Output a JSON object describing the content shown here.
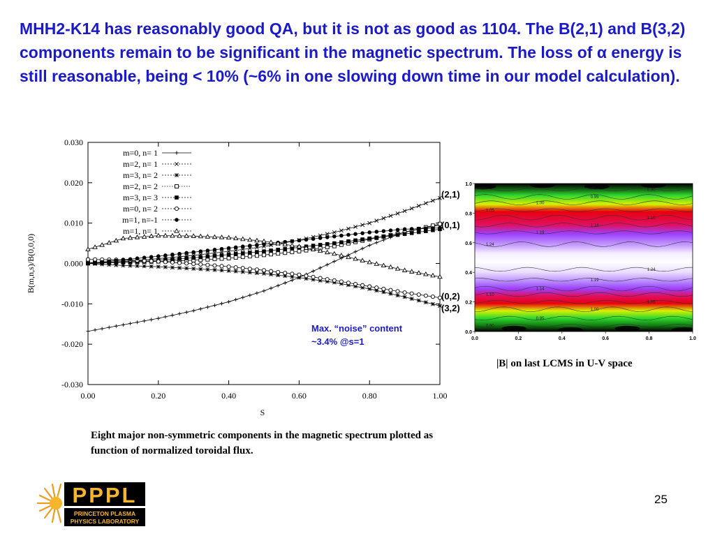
{
  "title": "MHH2-K14 has reasonably good QA, but it is not as good as 1104. The B(2,1) and B(3,2) components remain to be significant in the magnetic spectrum. The loss of α energy is still reasonable, being < 10% (~6% in one slowing down time in our model calculation).",
  "chart_data": [
    {
      "type": "line",
      "xlabel": "S",
      "ylabel": "B(m,n,s)/B(0,0,0)",
      "xlim": [
        0.0,
        1.0
      ],
      "ylim": [
        -0.03,
        0.03
      ],
      "x_ticks": [
        "0.00",
        "0.20",
        "0.40",
        "0.60",
        "0.80",
        "1.00"
      ],
      "y_ticks": [
        "-0.030",
        "-0.020",
        "-0.010",
        "0.000",
        "0.010",
        "0.020",
        "0.030"
      ],
      "legend_position": "top-left",
      "grid": false,
      "x": [
        0.0,
        0.1,
        0.2,
        0.3,
        0.4,
        0.5,
        0.6,
        0.7,
        0.8,
        0.9,
        1.0
      ],
      "series": [
        {
          "name": "m=0, n= 1",
          "marker": "plus",
          "values": [
            -0.0168,
            -0.0152,
            -0.0136,
            -0.0117,
            -0.0095,
            -0.0068,
            -0.0035,
            0.0005,
            0.0045,
            0.0078,
            0.0095
          ]
        },
        {
          "name": "m=2, n= 1",
          "marker": "cross",
          "values": [
            0.0,
            0.0005,
            0.0012,
            0.002,
            0.003,
            0.0042,
            0.0058,
            0.0077,
            0.01,
            0.013,
            0.0162
          ]
        },
        {
          "name": "m=3, n= 2",
          "marker": "asterisk",
          "values": [
            0.0,
            -0.0005,
            -0.0008,
            -0.0013,
            -0.0018,
            -0.0025,
            -0.0035,
            -0.0047,
            -0.0063,
            -0.0083,
            -0.0105
          ]
        },
        {
          "name": "m=2, n= 2",
          "marker": "square-open",
          "values": [
            0.0002,
            0.0003,
            0.0005,
            0.0008,
            0.0013,
            0.0021,
            0.003,
            0.0043,
            0.006,
            0.0077,
            0.0098
          ]
        },
        {
          "name": "m=3, n= 3",
          "marker": "square-filled",
          "values": [
            0.0,
            0.0003,
            0.0008,
            0.0014,
            0.0022,
            0.003,
            0.004,
            0.005,
            0.0062,
            0.0073,
            0.0085
          ]
        },
        {
          "name": "m=0, n= 2",
          "marker": "circle-open",
          "values": [
            0.001,
            0.0009,
            0.0005,
            -0.0001,
            -0.0008,
            -0.0017,
            -0.0028,
            -0.0042,
            -0.0057,
            -0.0072,
            -0.0085
          ]
        },
        {
          "name": "m=1, n=-1",
          "marker": "circle-filled",
          "values": [
            0.0,
            0.0009,
            0.0018,
            0.0028,
            0.0038,
            0.0048,
            0.0057,
            0.0067,
            0.0077,
            0.0085,
            0.0088
          ]
        },
        {
          "name": "m=1, n= 1",
          "marker": "triangle",
          "values": [
            0.0035,
            0.0062,
            0.0069,
            0.0068,
            0.0064,
            0.0055,
            0.0042,
            0.0024,
            0.0003,
            -0.0017,
            -0.0033
          ]
        }
      ]
    },
    {
      "type": "heatmap",
      "xlim": [
        0.0,
        1.0
      ],
      "ylim": [
        0.0,
        1.0
      ],
      "x_ticks": [
        "0.0",
        "0.2",
        "0.4",
        "0.6",
        "0.8",
        "1.0"
      ],
      "y_ticks": [
        "0.0",
        "0.2",
        "0.4",
        "0.6",
        "0.8",
        "1.0"
      ],
      "contour_levels": [
        {
          "label": "0.90",
          "v": 0.04
        },
        {
          "label": "0.95",
          "v": 0.09
        },
        {
          "label": "1.00",
          "v": 0.15
        },
        {
          "label": "1.05",
          "v": 0.2
        },
        {
          "label": "1.10",
          "v": 0.25
        },
        {
          "label": "1.14",
          "v": 0.29
        },
        {
          "label": "1.19",
          "v": 0.35
        },
        {
          "label": "1.24",
          "v": 0.42
        },
        {
          "label": "1.24",
          "v": 0.59
        },
        {
          "label": "1.19",
          "v": 0.67
        },
        {
          "label": "1.14",
          "v": 0.72
        },
        {
          "label": "1.10",
          "v": 0.77
        },
        {
          "label": "1.05",
          "v": 0.82
        },
        {
          "label": "1.00",
          "v": 0.87
        },
        {
          "label": "0.95",
          "v": 0.91
        },
        {
          "label": "0.90",
          "v": 0.96
        }
      ],
      "colors": {
        "max": "#ffffff",
        "purple": "#9b40ff",
        "red": "#e8000e",
        "green": "#2fd82f",
        "black": "#000000"
      }
    }
  ],
  "annotations": {
    "label_21": "(2,1)",
    "label_01": "(0,1)",
    "label_02": "(0,2)",
    "label_32": "(3,2)",
    "noise_line1": "Max. “noise” content",
    "noise_line2": "~3.4% @s=1"
  },
  "contour_caption": "|B| on last LCMS in U-V space",
  "caption": "Eight major non-symmetric components in the magnetic spectrum plotted as function of  normalized toroidal flux.",
  "logo": {
    "name": "PPPL",
    "line1": "PRINCETON PLASMA",
    "line2": "PHYSICS LABORATORY"
  },
  "page_number": "25"
}
